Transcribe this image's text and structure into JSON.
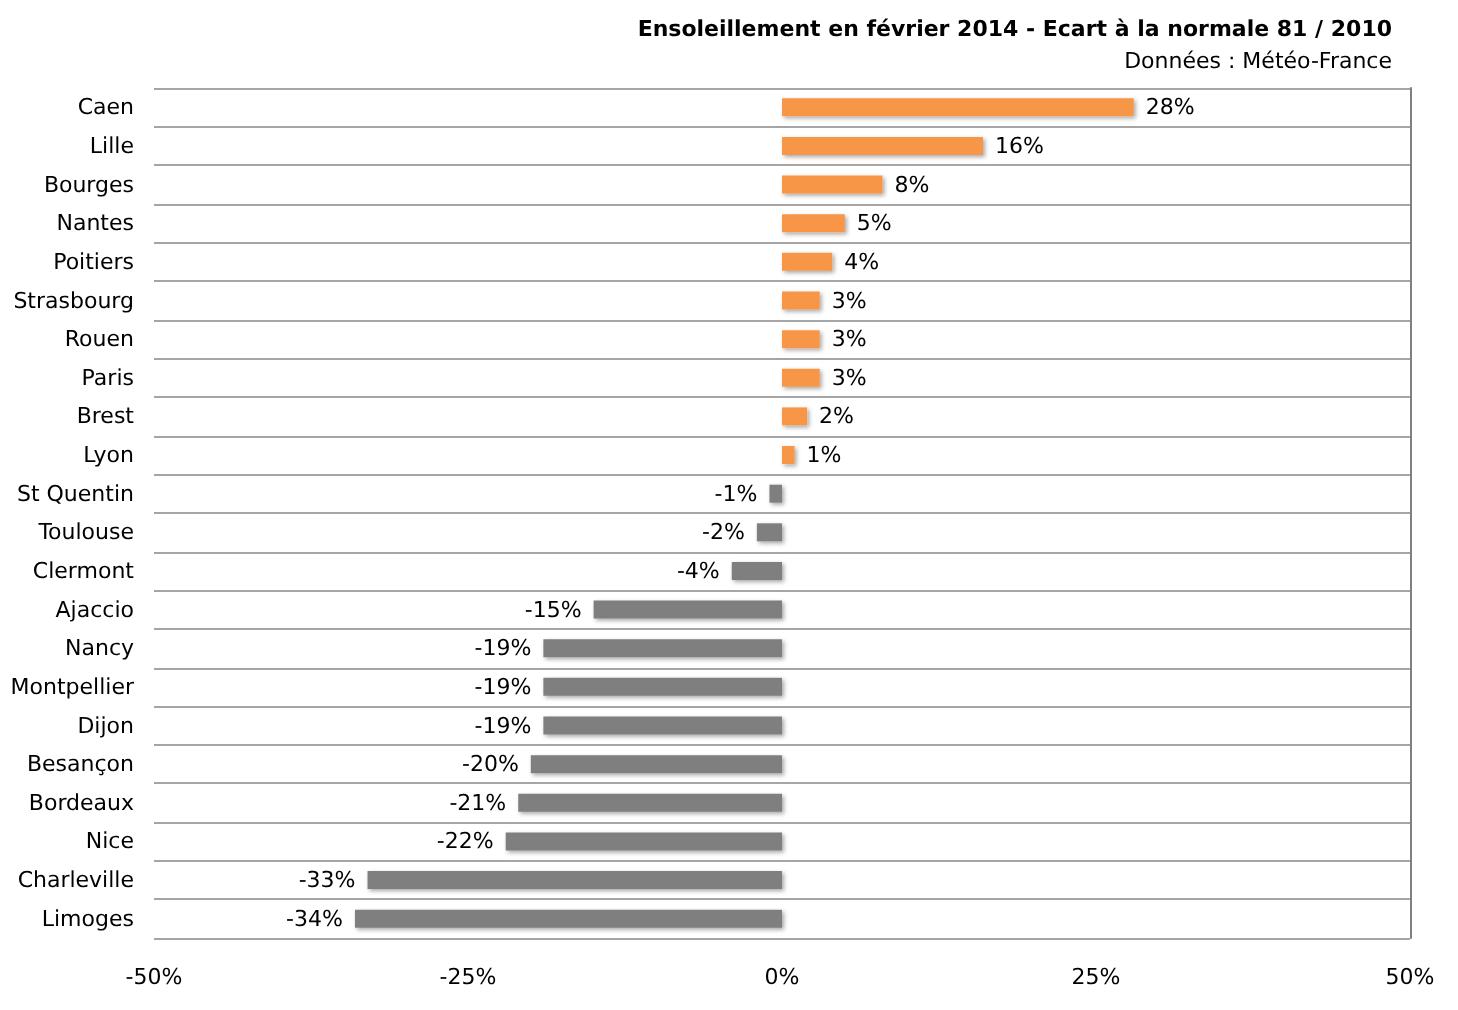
{
  "chart_data": {
    "type": "bar",
    "orientation": "horizontal",
    "title": "Ensoleillement en février 2014 - Ecart à la normale 81 / 2010",
    "subtitle": "Données : Météo-France",
    "categories": [
      "Caen",
      "Lille",
      "Bourges",
      "Nantes",
      "Poitiers",
      "Strasbourg",
      "Rouen",
      "Paris",
      "Brest",
      "Lyon",
      "St Quentin",
      "Toulouse",
      "Clermont",
      "Ajaccio",
      "Nancy",
      "Montpellier",
      "Dijon",
      "Besançon",
      "Bordeaux",
      "Nice",
      "Charleville",
      "Limoges"
    ],
    "values": [
      28,
      16,
      8,
      5,
      4,
      3,
      3,
      3,
      2,
      1,
      -1,
      -2,
      -4,
      -15,
      -19,
      -19,
      -19,
      -20,
      -21,
      -22,
      -33,
      -34
    ],
    "value_labels": [
      "28%",
      "16%",
      "8%",
      "5%",
      "4%",
      "3%",
      "3%",
      "3%",
      "2%",
      "1%",
      "-1%",
      "-2%",
      "-4%",
      "-15%",
      "-19%",
      "-19%",
      "-19%",
      "-20%",
      "-21%",
      "-22%",
      "-33%",
      "-34%"
    ],
    "colors": [
      "#f79646",
      "#f79646",
      "#f79646",
      "#f79646",
      "#f79646",
      "#f79646",
      "#f79646",
      "#f79646",
      "#f79646",
      "#f79646",
      "#7f7f7f",
      "#7f7f7f",
      "#7f7f7f",
      "#7f7f7f",
      "#7f7f7f",
      "#7f7f7f",
      "#7f7f7f",
      "#7f7f7f",
      "#7f7f7f",
      "#7f7f7f",
      "#7f7f7f",
      "#7f7f7f"
    ],
    "xlim": [
      -50,
      50
    ],
    "xticks": [
      {
        "value": -50,
        "label": "-50%"
      },
      {
        "value": -25,
        "label": "-25%"
      },
      {
        "value": 0,
        "label": "0%"
      },
      {
        "value": 25,
        "label": "25%"
      },
      {
        "value": 50,
        "label": "50%"
      }
    ],
    "grid": "y"
  }
}
